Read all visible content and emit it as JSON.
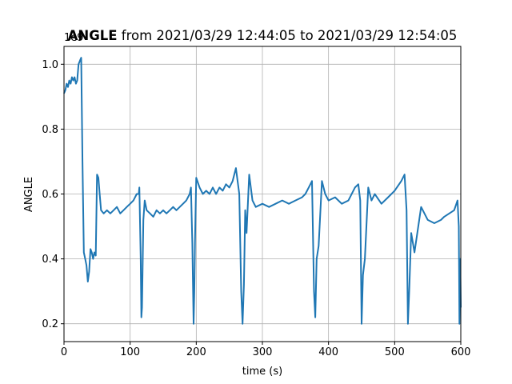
{
  "chart_data": {
    "type": "line",
    "title": {
      "bold": "ANGLE",
      "rest": " from 2021/03/29 12:44:05 to 2021/03/29 12:54:05"
    },
    "xlabel": "time (s)",
    "ylabel": "ANGLE",
    "y_offset_text": "1e9",
    "xlim": [
      0,
      600
    ],
    "ylim": [
      0.145,
      1.055
    ],
    "xticks": [
      0,
      100,
      200,
      300,
      400,
      500,
      600
    ],
    "xtick_labels": [
      "0",
      "100",
      "200",
      "300",
      "400",
      "500",
      "600"
    ],
    "yticks": [
      0.2,
      0.4,
      0.6,
      0.8,
      1.0
    ],
    "ytick_labels": [
      "0.2",
      "0.4",
      "0.6",
      "0.8",
      "1.0"
    ],
    "grid": true,
    "colors": {
      "line": "#1f77b4"
    },
    "series": [
      {
        "x": [
          0,
          2,
          4,
          6,
          8,
          10,
          12,
          14,
          16,
          18,
          20,
          22,
          24,
          26,
          28,
          30,
          32,
          34,
          36,
          38,
          40,
          42,
          44,
          46,
          48,
          50,
          52,
          54,
          56,
          60,
          65,
          70,
          75,
          80,
          85,
          90,
          95,
          100,
          105,
          110,
          113,
          114,
          116,
          117,
          118,
          120,
          122,
          125,
          130,
          135,
          140,
          145,
          150,
          155,
          160,
          165,
          170,
          175,
          180,
          185,
          190,
          192,
          194,
          196,
          197,
          198,
          200,
          205,
          210,
          215,
          220,
          225,
          230,
          235,
          240,
          245,
          250,
          255,
          260,
          265,
          268,
          270,
          272,
          274,
          276,
          280,
          285,
          290,
          300,
          310,
          320,
          330,
          340,
          350,
          360,
          365,
          370,
          375,
          378,
          380,
          382,
          385,
          390,
          395,
          400,
          410,
          420,
          430,
          440,
          445,
          448,
          450,
          452,
          455,
          460,
          465,
          470,
          480,
          490,
          500,
          510,
          515,
          518,
          520,
          522,
          525,
          530,
          540,
          550,
          560,
          570,
          575,
          590,
          595,
          597,
          598,
          599,
          600
        ],
        "y": [
          0.91,
          0.92,
          0.94,
          0.93,
          0.95,
          0.94,
          0.96,
          0.95,
          0.96,
          0.94,
          0.95,
          1.0,
          1.01,
          1.02,
          0.7,
          0.42,
          0.4,
          0.38,
          0.33,
          0.36,
          0.43,
          0.42,
          0.4,
          0.42,
          0.41,
          0.66,
          0.65,
          0.6,
          0.55,
          0.54,
          0.55,
          0.54,
          0.55,
          0.56,
          0.54,
          0.55,
          0.56,
          0.57,
          0.58,
          0.6,
          0.6,
          0.62,
          0.4,
          0.22,
          0.25,
          0.52,
          0.58,
          0.55,
          0.54,
          0.53,
          0.55,
          0.54,
          0.55,
          0.54,
          0.55,
          0.56,
          0.55,
          0.56,
          0.57,
          0.58,
          0.6,
          0.62,
          0.45,
          0.2,
          0.3,
          0.45,
          0.65,
          0.62,
          0.6,
          0.61,
          0.6,
          0.62,
          0.6,
          0.62,
          0.61,
          0.63,
          0.62,
          0.64,
          0.68,
          0.6,
          0.3,
          0.2,
          0.32,
          0.55,
          0.48,
          0.66,
          0.58,
          0.56,
          0.57,
          0.56,
          0.57,
          0.58,
          0.57,
          0.58,
          0.59,
          0.6,
          0.62,
          0.64,
          0.3,
          0.22,
          0.4,
          0.44,
          0.64,
          0.6,
          0.58,
          0.59,
          0.57,
          0.58,
          0.62,
          0.63,
          0.58,
          0.2,
          0.35,
          0.4,
          0.62,
          0.58,
          0.6,
          0.57,
          0.59,
          0.61,
          0.64,
          0.66,
          0.55,
          0.2,
          0.3,
          0.48,
          0.42,
          0.56,
          0.52,
          0.51,
          0.52,
          0.53,
          0.55,
          0.58,
          0.5,
          0.2,
          0.4,
          0.25
        ]
      }
    ]
  }
}
